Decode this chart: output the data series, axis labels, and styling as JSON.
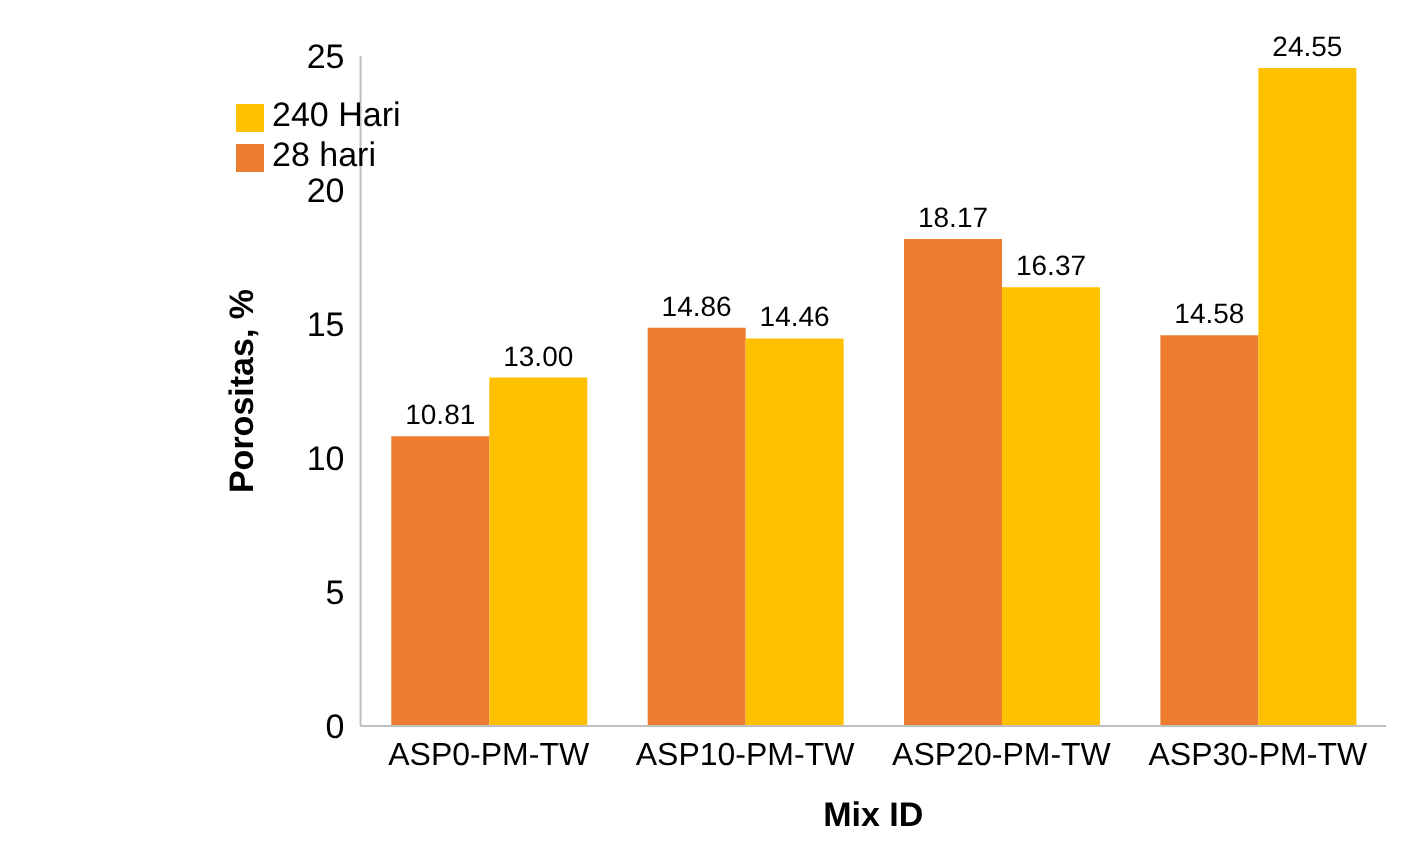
{
  "chart_data": {
    "type": "bar",
    "xlabel": "Mix ID",
    "ylabel": "Porositas, %",
    "categories": [
      "ASP0-PM-TW",
      "ASP10-PM-TW",
      "ASP20-PM-TW",
      "ASP30-PM-TW"
    ],
    "series": [
      {
        "name": "28 hari",
        "color": "#ed7d31",
        "values": [
          10.81,
          14.86,
          18.17,
          14.58
        ],
        "value_labels": [
          "10.81",
          "14.86",
          "18.17",
          "14.58"
        ]
      },
      {
        "name": "240 Hari",
        "color": "#ffc000",
        "values": [
          13.0,
          14.46,
          16.37,
          24.55
        ],
        "value_labels": [
          "13.00",
          "14.46",
          "16.37",
          "24.55"
        ]
      }
    ],
    "ylim": [
      0,
      25
    ],
    "yticks": [
      0,
      5,
      10,
      15,
      20,
      25
    ],
    "legend": "top left"
  }
}
